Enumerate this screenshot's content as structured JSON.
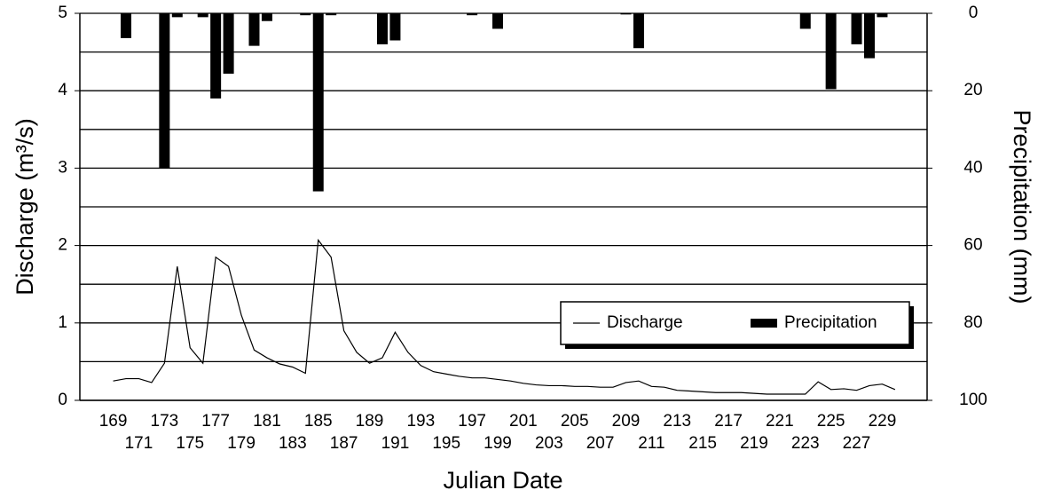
{
  "chart_data": {
    "type": "bar_line",
    "x_label": "Julian Date",
    "y_label": "Discharge (m³/s)",
    "y2_label": "Precipitation (mm)",
    "x": [
      169,
      170,
      171,
      172,
      173,
      174,
      175,
      176,
      177,
      178,
      179,
      180,
      181,
      182,
      183,
      184,
      185,
      186,
      187,
      188,
      189,
      190,
      191,
      192,
      193,
      194,
      195,
      196,
      197,
      198,
      199,
      200,
      201,
      202,
      203,
      204,
      205,
      206,
      207,
      208,
      209,
      210,
      211,
      212,
      213,
      214,
      215,
      216,
      217,
      218,
      219,
      220,
      221,
      222,
      223,
      224,
      225,
      226,
      227,
      228,
      229,
      230
    ],
    "xlim": [
      166.4,
      232.5
    ],
    "xticks": [
      169,
      171,
      173,
      175,
      177,
      179,
      181,
      183,
      185,
      187,
      189,
      191,
      193,
      195,
      197,
      199,
      201,
      203,
      205,
      207,
      209,
      211,
      213,
      215,
      217,
      219,
      221,
      223,
      225,
      227,
      229
    ],
    "ylim": [
      0,
      5
    ],
    "yticks": [
      0,
      1,
      2,
      3,
      4,
      5
    ],
    "yminor": [
      0.5,
      1.5,
      2.5,
      3.5,
      4.5
    ],
    "y2lim": [
      100,
      0
    ],
    "y2ticks": [
      0,
      20,
      40,
      60,
      80,
      100
    ],
    "grid": true,
    "legend": "lower right",
    "series": [
      {
        "name": "Discharge",
        "type": "line",
        "color": "#000000",
        "values": [
          0.25,
          0.28,
          0.28,
          0.23,
          0.48,
          1.73,
          0.68,
          0.48,
          1.85,
          1.73,
          1.1,
          0.65,
          0.55,
          0.47,
          0.43,
          0.35,
          2.07,
          1.85,
          0.9,
          0.62,
          0.48,
          0.55,
          0.88,
          0.62,
          0.45,
          0.37,
          0.34,
          0.31,
          0.29,
          0.29,
          0.27,
          0.25,
          0.22,
          0.2,
          0.19,
          0.19,
          0.18,
          0.18,
          0.17,
          0.17,
          0.23,
          0.25,
          0.18,
          0.17,
          0.13,
          0.12,
          0.11,
          0.1,
          0.1,
          0.1,
          0.09,
          0.08,
          0.08,
          0.08,
          0.08,
          0.24,
          0.14,
          0.15,
          0.13,
          0.19,
          0.21,
          0.14
        ]
      },
      {
        "name": "Precipitation",
        "type": "bar",
        "axis": "y2",
        "color": "#000000",
        "values": [
          0,
          6.4,
          0,
          0,
          40,
          1,
          0,
          1,
          22,
          15.6,
          0,
          8.4,
          2,
          0,
          0,
          0.5,
          46,
          0.5,
          0,
          0,
          0,
          8,
          7,
          0,
          0,
          0,
          0,
          0,
          0.5,
          0,
          4,
          0,
          0,
          0,
          0,
          0,
          0,
          0,
          0,
          0,
          0.3,
          9,
          0,
          0,
          0,
          0,
          0,
          0,
          0,
          0,
          0,
          0,
          0,
          0,
          4,
          0,
          19.6,
          0,
          8,
          11.6,
          1,
          0
        ]
      }
    ]
  }
}
